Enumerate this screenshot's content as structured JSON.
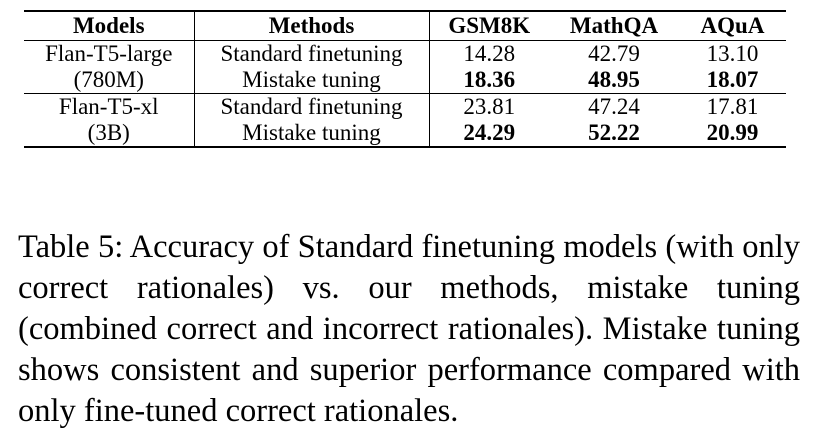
{
  "table": {
    "headers": [
      "Models",
      "Methods",
      "GSM8K",
      "MathQA",
      "AQuA"
    ],
    "groups": [
      {
        "model_name": "Flan-T5-large",
        "model_size": "(780M)",
        "rows": [
          {
            "method": "Standard finetuning",
            "gsm8k": "14.28",
            "mathqa": "42.79",
            "aqua": "13.10"
          },
          {
            "method": "Mistake tuning",
            "gsm8k": "18.36",
            "mathqa": "48.95",
            "aqua": "18.07"
          }
        ]
      },
      {
        "model_name": "Flan-T5-xl",
        "model_size": "(3B)",
        "rows": [
          {
            "method": "Standard finetuning",
            "gsm8k": "23.81",
            "mathqa": "47.24",
            "aqua": "17.81"
          },
          {
            "method": "Mistake tuning",
            "gsm8k": "24.29",
            "mathqa": "52.22",
            "aqua": "20.99"
          }
        ]
      }
    ]
  },
  "caption": "Table 5: Accuracy of Standard finetuning models (with only correct rationales) vs. our methods, mistake tuning (combined correct and incorrect rationales). Mistake tuning shows consistent and superior performance compared with only fine-tuned correct rationales."
}
